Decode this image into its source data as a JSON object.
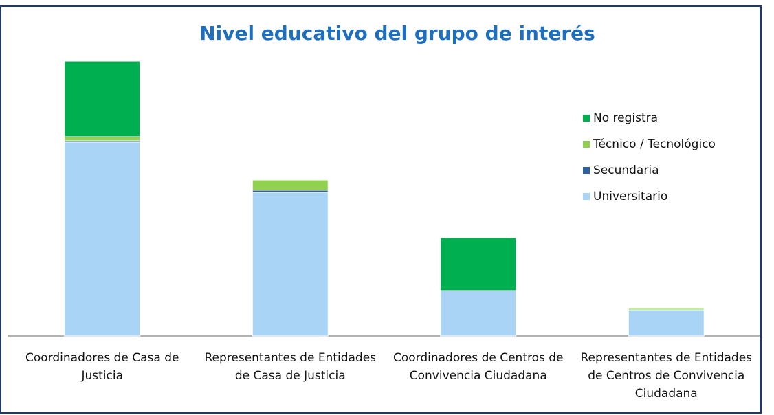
{
  "chart_data": {
    "type": "stacked_bar",
    "title": "Nivel educativo del grupo de interés",
    "categories": [
      "Coordinadores de Casa de Justicia",
      "Representantes de Entidades de Casa de Justicia",
      "Coordinadores de Centros de Convivencia Ciudadana",
      "Representantes de Entidades de Centros de Convivencia Ciudadana"
    ],
    "series": [
      {
        "name": "Universitario",
        "color": "#a9d4f5",
        "values": [
          282,
          209,
          66,
          38
        ]
      },
      {
        "name": "Secundaria",
        "color": "#2f5f9e",
        "values": [
          2,
          3,
          0,
          0
        ]
      },
      {
        "name": "Técnico / Tecnológico",
        "color": "#92d050",
        "values": [
          6,
          15,
          0,
          3
        ]
      },
      {
        "name": "No registra",
        "color": "#00b050",
        "values": [
          110,
          0,
          77,
          0
        ]
      }
    ],
    "ylim": [
      0,
      400
    ],
    "legend": "right"
  }
}
